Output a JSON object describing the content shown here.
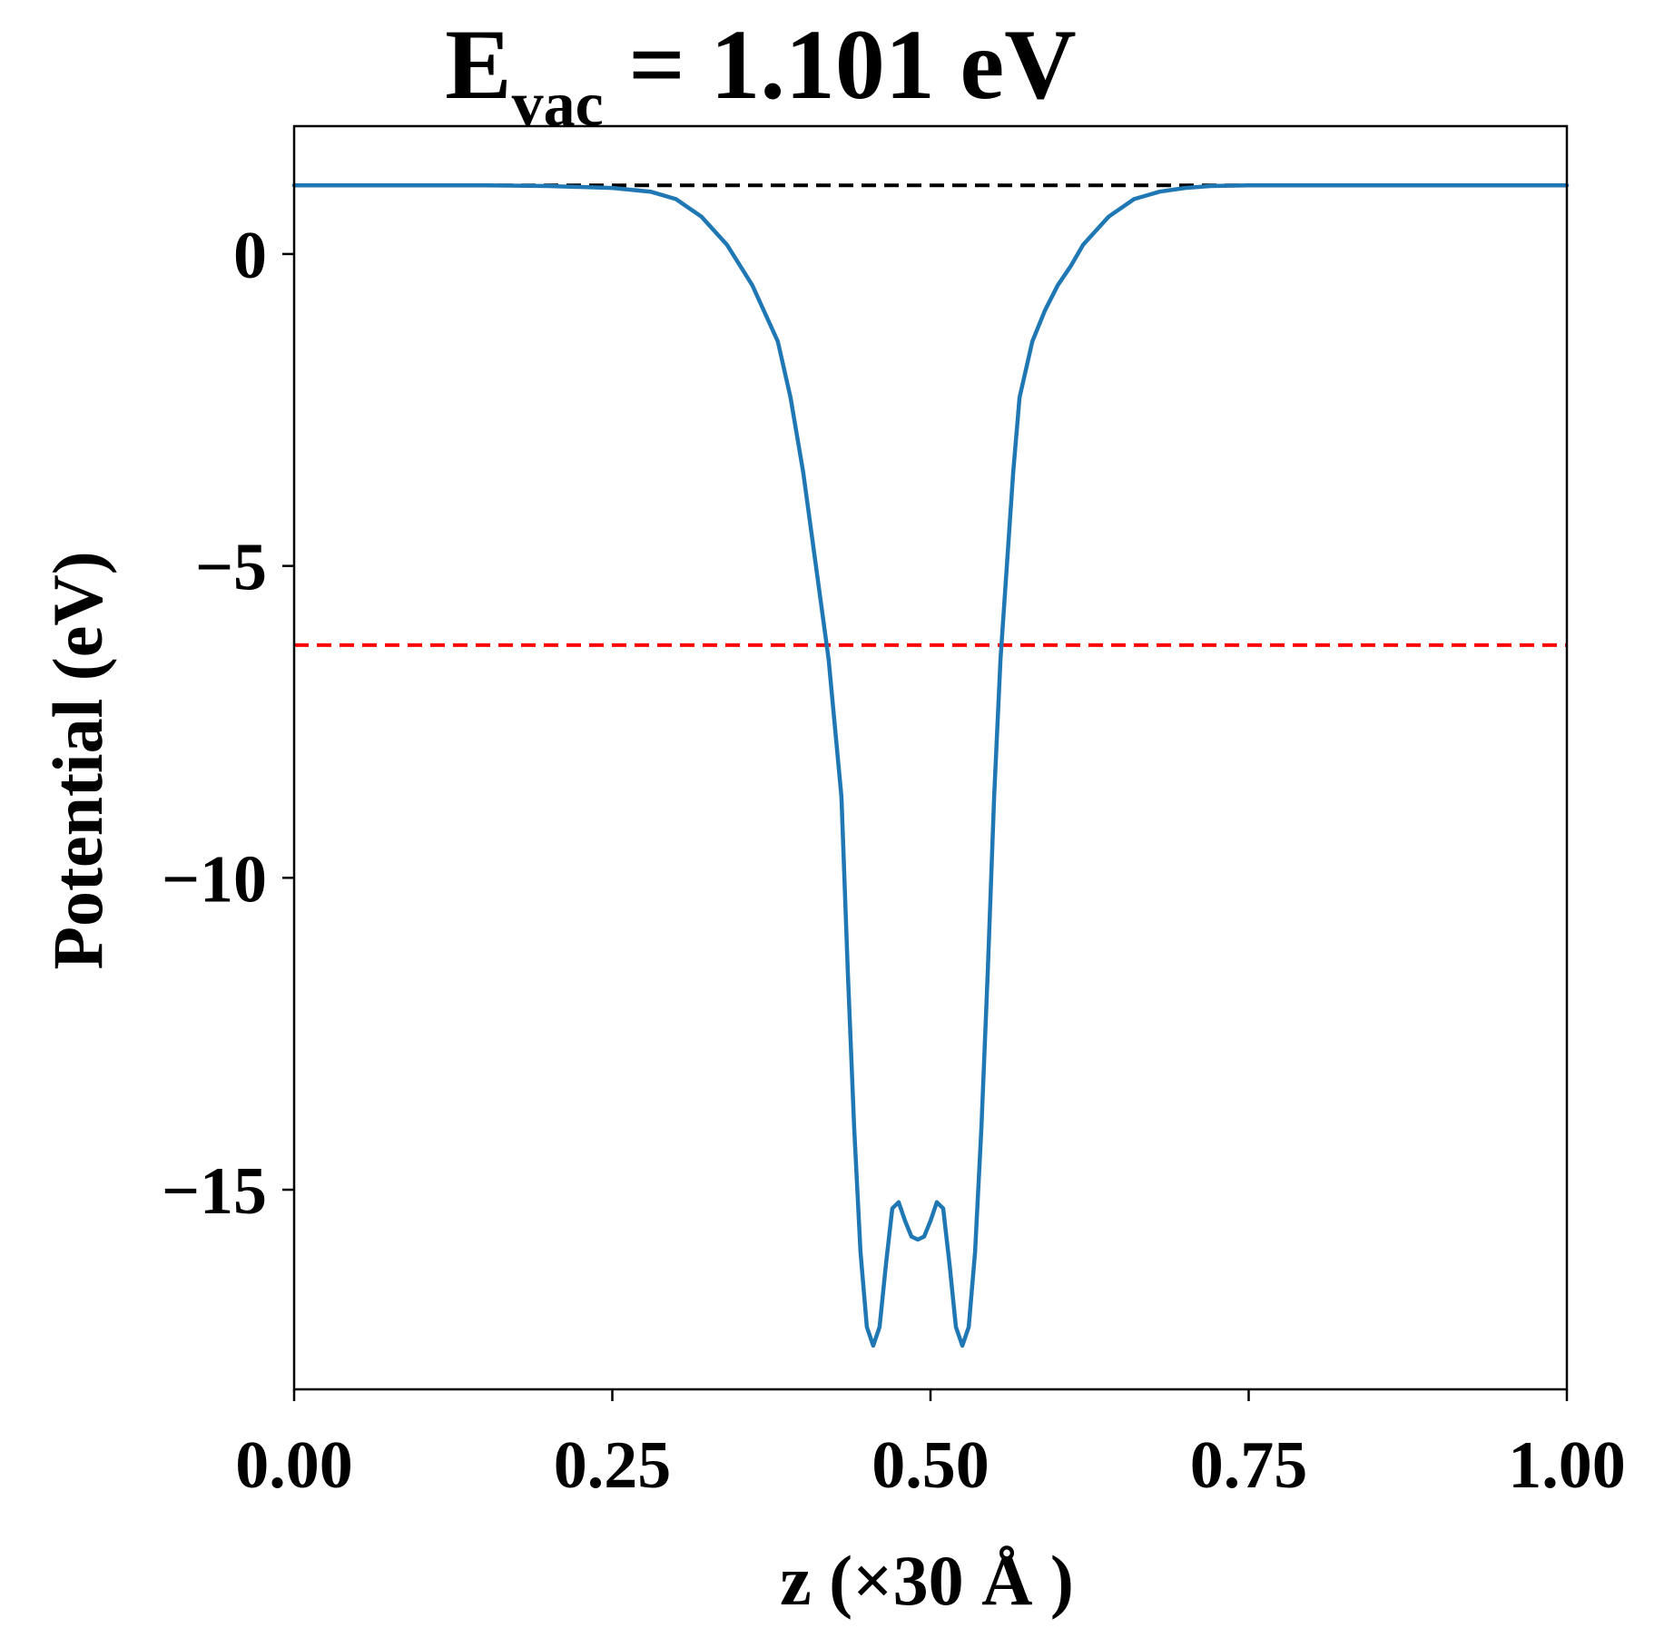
{
  "chart_data": {
    "type": "line",
    "title": {
      "main": "E",
      "subscript": "vac",
      "rest": " = 1.101 eV"
    },
    "xlabel": "z (×30 Å )",
    "ylabel": "Potential (eV)",
    "xlim": [
      0.0,
      1.0
    ],
    "ylim": [
      -18.2,
      2.05
    ],
    "grid": false,
    "x_ticks": [
      0.0,
      0.25,
      0.5,
      0.75,
      1.0
    ],
    "x_tick_labels": [
      "0.00",
      "0.25",
      "0.50",
      "0.75",
      "1.00"
    ],
    "y_ticks": [
      0,
      -5,
      -10,
      -15
    ],
    "y_tick_labels": [
      "0",
      "−5",
      "−10",
      "−15"
    ],
    "reference_lines": [
      {
        "value": 1.101,
        "color": "#000000",
        "style": "dashed"
      },
      {
        "value": -6.27,
        "color": "#ff0000",
        "style": "dashed"
      }
    ],
    "series": [
      {
        "color": "#1f77b4",
        "x": [
          0.0,
          0.05,
          0.1,
          0.15,
          0.2,
          0.25,
          0.28,
          0.3,
          0.32,
          0.34,
          0.36,
          0.38,
          0.39,
          0.4,
          0.41,
          0.42,
          0.43,
          0.435,
          0.44,
          0.445,
          0.45,
          0.455,
          0.46,
          0.465,
          0.47,
          0.475,
          0.48,
          0.485,
          0.49,
          0.495,
          0.5,
          0.505,
          0.51,
          0.515,
          0.52,
          0.525,
          0.53,
          0.535,
          0.54,
          0.545,
          0.55,
          0.555,
          0.56,
          0.565,
          0.57,
          0.58,
          0.59,
          0.6,
          0.61,
          0.62,
          0.64,
          0.66,
          0.68,
          0.7,
          0.72,
          0.75,
          0.8,
          0.85,
          0.9,
          0.95,
          1.0
        ],
        "y": [
          1.1,
          1.1,
          1.1,
          1.1,
          1.09,
          1.06,
          1.0,
          0.88,
          0.6,
          0.15,
          -0.5,
          -1.4,
          -2.3,
          -3.5,
          -5.0,
          -6.5,
          -8.7,
          -11.5,
          -14.0,
          -16.0,
          -17.2,
          -17.5,
          -17.2,
          -16.2,
          -15.3,
          -15.2,
          -15.5,
          -15.75,
          -15.8,
          -15.75,
          -15.5,
          -15.2,
          -15.3,
          -16.2,
          -17.2,
          -17.5,
          -17.2,
          -16.0,
          -14.0,
          -11.5,
          -8.7,
          -6.5,
          -5.0,
          -3.5,
          -2.3,
          -1.4,
          -0.9,
          -0.5,
          -0.2,
          0.15,
          0.6,
          0.88,
          1.0,
          1.06,
          1.09,
          1.1,
          1.1,
          1.1,
          1.1,
          1.1,
          1.1
        ]
      }
    ]
  }
}
